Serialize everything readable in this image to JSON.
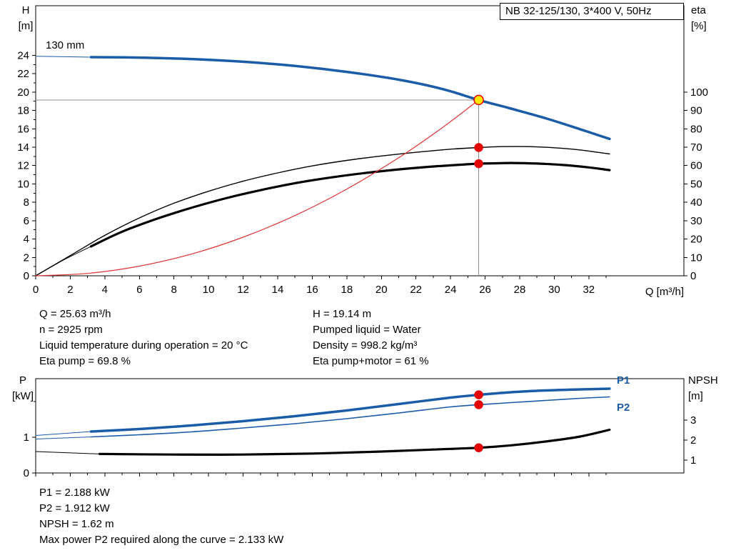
{
  "pump_info": {
    "left": [
      "Q = 25.63 m³/h",
      "n = 2925 rpm",
      "Liquid temperature during operation = 20 °C",
      "Eta pump = 69.8 %"
    ],
    "right": [
      "H = 19.14 m",
      "Pumped liquid = Water",
      "Density = 998.2 kg/m³",
      "Eta pump+motor = 61 %"
    ]
  },
  "power_info": [
    "P1 = 2.188 kW",
    "P2 = 1.912 kW",
    "NPSH = 1.62 m",
    "Max power P2 required along the curve = 2.133 kW"
  ],
  "colors": {
    "curve_blue": "#1b5ca8",
    "curve_black": "#000000",
    "system_red": "#e03333",
    "dot_red": "#e60000",
    "dot_yellow": "#ffe600",
    "crosshair_gray": "#8c8c8c"
  },
  "chart_data": [
    {
      "id": "qh-chart",
      "type": "line",
      "title": "NB 32-125/130, 3*400 V, 50Hz",
      "impeller_label": "130 mm",
      "x_axis": {
        "label": "Q [m³/h]",
        "min": 0,
        "max": 37.5,
        "major_ticks": [
          0,
          2,
          4,
          6,
          8,
          10,
          12,
          14,
          16,
          18,
          20,
          22,
          24,
          26,
          28,
          30,
          32
        ],
        "minor_ticks": [
          1,
          3,
          5,
          7,
          9,
          11,
          13,
          15,
          17,
          19,
          21,
          23,
          25,
          27,
          29,
          31,
          33
        ]
      },
      "y_left": {
        "title_lines": [
          "H",
          "[m]"
        ],
        "min": 0,
        "max": 29.4,
        "major_ticks": [
          0,
          2,
          4,
          6,
          8,
          10,
          12,
          14,
          16,
          18,
          20,
          22,
          24
        ],
        "minor_ticks": [
          1,
          3,
          5,
          7,
          9,
          11,
          13,
          15,
          17,
          19,
          21,
          23
        ]
      },
      "y_right": {
        "title_lines": [
          "eta",
          "[%]"
        ],
        "min": 0,
        "max": 147,
        "major_ticks": [
          0,
          10,
          20,
          30,
          40,
          50,
          60,
          70,
          80,
          90,
          100
        ],
        "minor_ticks": []
      },
      "series": [
        {
          "name": "head-leadin",
          "axis": "left",
          "color": "#1b5ca8",
          "width": 1,
          "points": [
            [
              0,
              23.9
            ],
            [
              3.2,
              23.8
            ]
          ]
        },
        {
          "name": "head-curve",
          "axis": "left",
          "color": "#1b5ca8",
          "width": 3.5,
          "points": [
            [
              3.2,
              23.8
            ],
            [
              6,
              23.75
            ],
            [
              9,
              23.6
            ],
            [
              12,
              23.3
            ],
            [
              15,
              22.85
            ],
            [
              18,
              22.2
            ],
            [
              21,
              21.35
            ],
            [
              23.5,
              20.35
            ],
            [
              25.63,
              19.14
            ],
            [
              27.5,
              18.2
            ],
            [
              29.5,
              17.15
            ],
            [
              31.5,
              15.95
            ],
            [
              33.2,
              14.9
            ]
          ]
        },
        {
          "name": "eta-pump-curve",
          "axis": "right",
          "color": "#000000",
          "width": 1.4,
          "points": [
            [
              0,
              0
            ],
            [
              2,
              11
            ],
            [
              4,
              22
            ],
            [
              6,
              31.5
            ],
            [
              8,
              39.5
            ],
            [
              10,
              46
            ],
            [
              12,
              51.5
            ],
            [
              14,
              56
            ],
            [
              16,
              59.8
            ],
            [
              18,
              62.8
            ],
            [
              20,
              65.2
            ],
            [
              22,
              67.2
            ],
            [
              24,
              68.9
            ],
            [
              25.63,
              69.8
            ],
            [
              27,
              70.3
            ],
            [
              28.5,
              70.3
            ],
            [
              30,
              69.7
            ],
            [
              31.5,
              68.5
            ],
            [
              33.2,
              66.3
            ]
          ]
        },
        {
          "name": "eta-pump-motor-leadin",
          "axis": "right",
          "color": "#000000",
          "width": 1,
          "points": [
            [
              0,
              0
            ],
            [
              1.6,
              8.5
            ],
            [
              3.2,
              16
            ]
          ]
        },
        {
          "name": "eta-pump-motor-curve",
          "axis": "right",
          "color": "#000000",
          "width": 3.2,
          "points": [
            [
              3.2,
              16
            ],
            [
              5,
              24
            ],
            [
              7,
              31
            ],
            [
              9,
              37
            ],
            [
              11,
              42.2
            ],
            [
              13,
              46.6
            ],
            [
              15,
              50.4
            ],
            [
              17,
              53.4
            ],
            [
              19,
              55.9
            ],
            [
              21,
              57.9
            ],
            [
              23,
              59.5
            ],
            [
              25,
              60.7
            ],
            [
              25.63,
              61
            ],
            [
              27.5,
              61.4
            ],
            [
              29,
              61.1
            ],
            [
              30.5,
              60.3
            ],
            [
              32,
              59
            ],
            [
              33.2,
              57.5
            ]
          ]
        },
        {
          "name": "system-curve",
          "axis": "left",
          "color": "#e03333",
          "width": 1.2,
          "points": [
            [
              0,
              0
            ],
            [
              3,
              0.26
            ],
            [
              6,
              1.05
            ],
            [
              9,
              2.36
            ],
            [
              12,
              4.2
            ],
            [
              15,
              6.56
            ],
            [
              18,
              9.44
            ],
            [
              21,
              12.85
            ],
            [
              23.5,
              16.09
            ],
            [
              25.63,
              19.14
            ]
          ]
        }
      ],
      "crosshair": {
        "q": 25.63,
        "value": 19.14,
        "axis": "left"
      },
      "markers": [
        {
          "name": "duty-point",
          "q": 25.63,
          "value": 19.14,
          "axis": "left",
          "fill": "#ffe600",
          "stroke": "#e60000",
          "r": 6.5
        },
        {
          "name": "eta-pump-point",
          "q": 25.63,
          "value": 69.8,
          "axis": "right",
          "fill": "#e60000",
          "stroke": "#e60000",
          "r": 5.5
        },
        {
          "name": "eta-pump-motor-point",
          "q": 25.63,
          "value": 61,
          "axis": "right",
          "fill": "#e60000",
          "stroke": "#e60000",
          "r": 5.5
        }
      ]
    },
    {
      "id": "power-chart",
      "type": "line",
      "curve_labels": [
        "P1",
        "P2"
      ],
      "x_axis": {
        "label": "",
        "min": 0,
        "max": 37.5,
        "major_ticks": [
          0,
          2,
          4,
          6,
          8,
          10,
          12,
          14,
          16,
          18,
          20,
          22,
          24,
          26,
          28,
          30,
          32
        ],
        "minor_ticks": [
          1,
          3,
          5,
          7,
          9,
          11,
          13,
          15,
          17,
          19,
          21,
          23,
          25,
          27,
          29,
          31,
          33
        ],
        "show_labels": false
      },
      "y_left": {
        "title_lines": [
          "P",
          "[kW]"
        ],
        "min": 0,
        "max": 2.64,
        "major_ticks": [
          0,
          1
        ],
        "minor_ticks": [
          2
        ]
      },
      "y_right": {
        "title_lines": [
          "NPSH",
          "[m]"
        ],
        "min": 0.36,
        "max": 5.07,
        "major_ticks": [
          1,
          2,
          3
        ],
        "minor_ticks": []
      },
      "series": [
        {
          "name": "p1-leadin",
          "axis": "left",
          "color": "#1b5ca8",
          "width": 1,
          "points": [
            [
              0,
              1.05
            ],
            [
              3.2,
              1.16
            ]
          ]
        },
        {
          "name": "p1-curve",
          "axis": "left",
          "color": "#1b5ca8",
          "width": 3.5,
          "points": [
            [
              3.2,
              1.16
            ],
            [
              6,
              1.23
            ],
            [
              9,
              1.33
            ],
            [
              12,
              1.45
            ],
            [
              15,
              1.59
            ],
            [
              18,
              1.75
            ],
            [
              21,
              1.93
            ],
            [
              24,
              2.11
            ],
            [
              25.63,
              2.188
            ],
            [
              27.5,
              2.26
            ],
            [
              29.5,
              2.31
            ],
            [
              31.5,
              2.34
            ],
            [
              33.2,
              2.36
            ]
          ]
        },
        {
          "name": "p2-leadin",
          "axis": "left",
          "color": "#1b5ca8",
          "width": 1,
          "points": [
            [
              0,
              0.95
            ],
            [
              3.2,
              1.01
            ]
          ]
        },
        {
          "name": "p2-curve",
          "axis": "left",
          "color": "#1b5ca8",
          "width": 1.6,
          "points": [
            [
              3.2,
              1.01
            ],
            [
              6,
              1.07
            ],
            [
              9,
              1.15
            ],
            [
              12,
              1.26
            ],
            [
              15,
              1.38
            ],
            [
              18,
              1.52
            ],
            [
              21,
              1.68
            ],
            [
              24,
              1.85
            ],
            [
              25.63,
              1.912
            ],
            [
              27.5,
              1.97
            ],
            [
              29.5,
              2.03
            ],
            [
              31.5,
              2.09
            ],
            [
              33.2,
              2.13
            ]
          ]
        },
        {
          "name": "npsh-leadin",
          "axis": "right",
          "color": "#000000",
          "width": 1,
          "points": [
            [
              0,
              1.43
            ],
            [
              3.7,
              1.31
            ]
          ]
        },
        {
          "name": "npsh-curve",
          "axis": "right",
          "color": "#000000",
          "width": 3.2,
          "points": [
            [
              3.7,
              1.31
            ],
            [
              8,
              1.28
            ],
            [
              12,
              1.28
            ],
            [
              16,
              1.33
            ],
            [
              20,
              1.43
            ],
            [
              23,
              1.53
            ],
            [
              25.63,
              1.62
            ],
            [
              27.5,
              1.74
            ],
            [
              29.5,
              1.93
            ],
            [
              31.5,
              2.18
            ],
            [
              33.2,
              2.52
            ]
          ]
        }
      ],
      "markers": [
        {
          "name": "p1-point",
          "q": 25.63,
          "value": 2.188,
          "axis": "left",
          "fill": "#e60000",
          "stroke": "#e60000",
          "r": 5.5
        },
        {
          "name": "p2-point",
          "q": 25.63,
          "value": 1.912,
          "axis": "left",
          "fill": "#e60000",
          "stroke": "#e60000",
          "r": 5.5
        },
        {
          "name": "npsh-point",
          "q": 25.63,
          "value": 1.62,
          "axis": "right",
          "fill": "#e60000",
          "stroke": "#e60000",
          "r": 5.5
        }
      ]
    }
  ]
}
